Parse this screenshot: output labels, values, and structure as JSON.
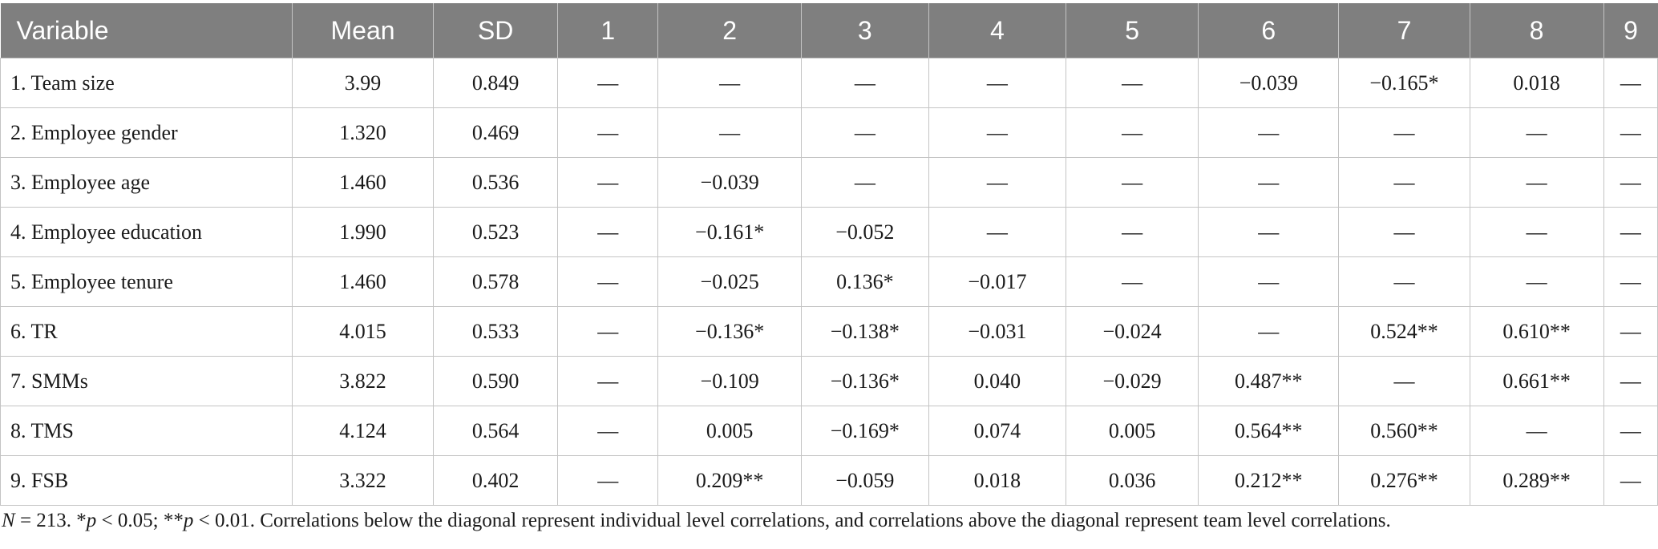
{
  "table": {
    "columns": [
      "Variable",
      "Mean",
      "SD",
      "1",
      "2",
      "3",
      "4",
      "5",
      "6",
      "7",
      "8",
      "9"
    ],
    "rows": [
      [
        "1. Team size",
        "3.99",
        "0.849",
        "—",
        "—",
        "—",
        "—",
        "—",
        "−0.039",
        "−0.165*",
        "0.018",
        "—"
      ],
      [
        "2. Employee gender",
        "1.320",
        "0.469",
        "—",
        "—",
        "—",
        "—",
        "—",
        "—",
        "—",
        "—",
        "—"
      ],
      [
        "3. Employee age",
        "1.460",
        "0.536",
        "—",
        "−0.039",
        "—",
        "—",
        "—",
        "—",
        "—",
        "—",
        "—"
      ],
      [
        "4. Employee education",
        "1.990",
        "0.523",
        "—",
        "−0.161*",
        "−0.052",
        "—",
        "—",
        "—",
        "—",
        "—",
        "—"
      ],
      [
        "5. Employee tenure",
        "1.460",
        "0.578",
        "—",
        "−0.025",
        "0.136*",
        "−0.017",
        "—",
        "—",
        "—",
        "—",
        "—"
      ],
      [
        "6. TR",
        "4.015",
        "0.533",
        "—",
        "−0.136*",
        "−0.138*",
        "−0.031",
        "−0.024",
        "—",
        "0.524**",
        "0.610**",
        "—"
      ],
      [
        "7. SMMs",
        "3.822",
        "0.590",
        "—",
        "−0.109",
        "−0.136*",
        "0.040",
        "−0.029",
        "0.487**",
        "—",
        "0.661**",
        "—"
      ],
      [
        "8. TMS",
        "4.124",
        "0.564",
        "—",
        "0.005",
        "−0.169*",
        "0.074",
        "0.005",
        "0.564**",
        "0.560**",
        "—",
        "—"
      ],
      [
        "9. FSB",
        "3.322",
        "0.402",
        "—",
        "0.209**",
        "−0.059",
        "0.018",
        "0.036",
        "0.212**",
        "0.276**",
        "0.289**",
        "—"
      ]
    ]
  },
  "note": {
    "n_label": "N",
    "n_value": " = 213. *",
    "p1_label": "p",
    "p1_value": " < 0.05; **",
    "p2_label": "p",
    "rest": " < 0.01. Correlations below the diagonal represent individual level correlations, and correlations above the diagonal represent team level correlations."
  },
  "colors": {
    "header_bg": "#7f7f7f",
    "header_text": "#ffffff",
    "grid": "#c4c4c4"
  }
}
